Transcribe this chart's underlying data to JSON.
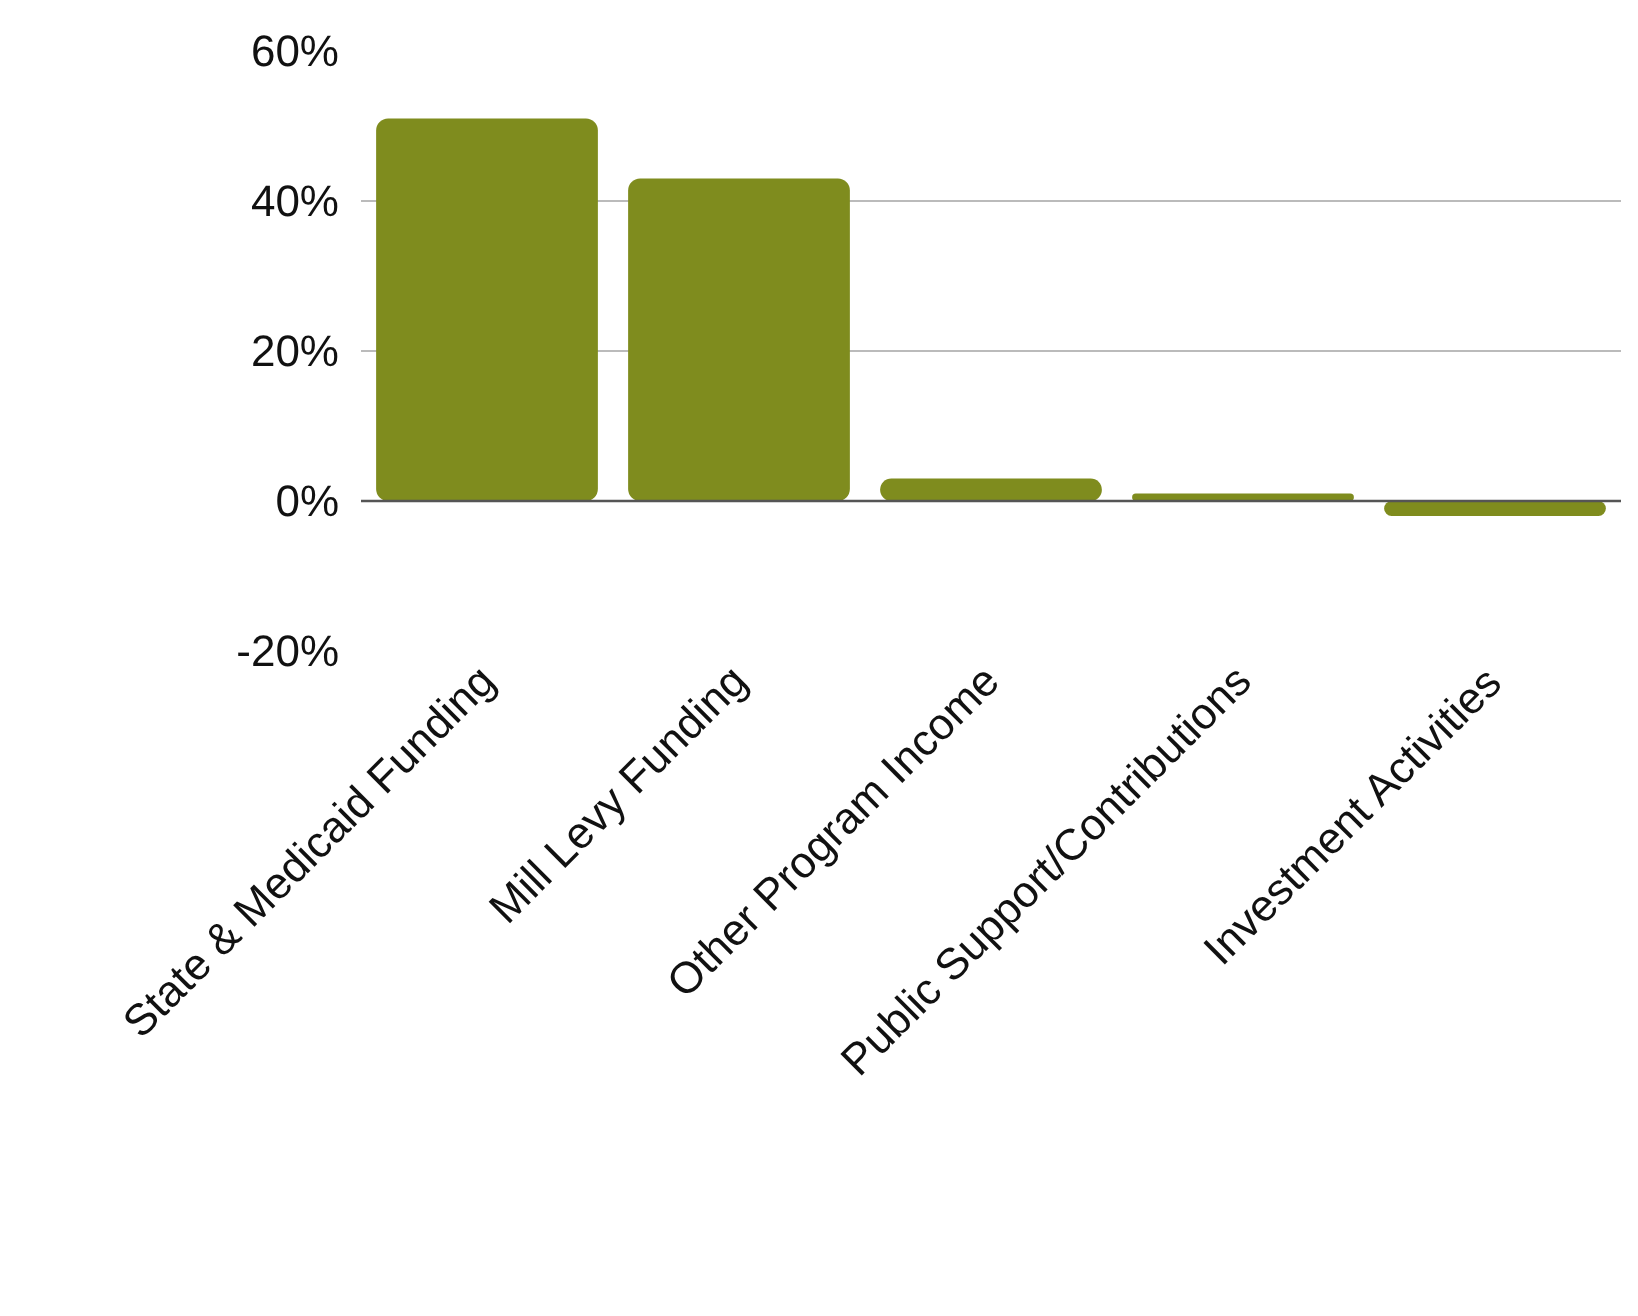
{
  "chart_data": {
    "type": "bar",
    "categories": [
      "State & Medicaid Funding",
      "Mill Levy Funding",
      "Other Program Income",
      "Public Support/Contributions",
      "Investment Activities"
    ],
    "values": [
      51,
      43,
      3,
      1,
      -2
    ],
    "color": "#7f8c1e",
    "ylim": [
      -20,
      60
    ],
    "yticks": [
      {
        "value": -20,
        "label": "-20%"
      },
      {
        "value": 0,
        "label": "0%"
      },
      {
        "value": 20,
        "label": "20%"
      },
      {
        "value": 40,
        "label": "40%"
      },
      {
        "value": 60,
        "label": "60%"
      }
    ],
    "grid": "y"
  }
}
